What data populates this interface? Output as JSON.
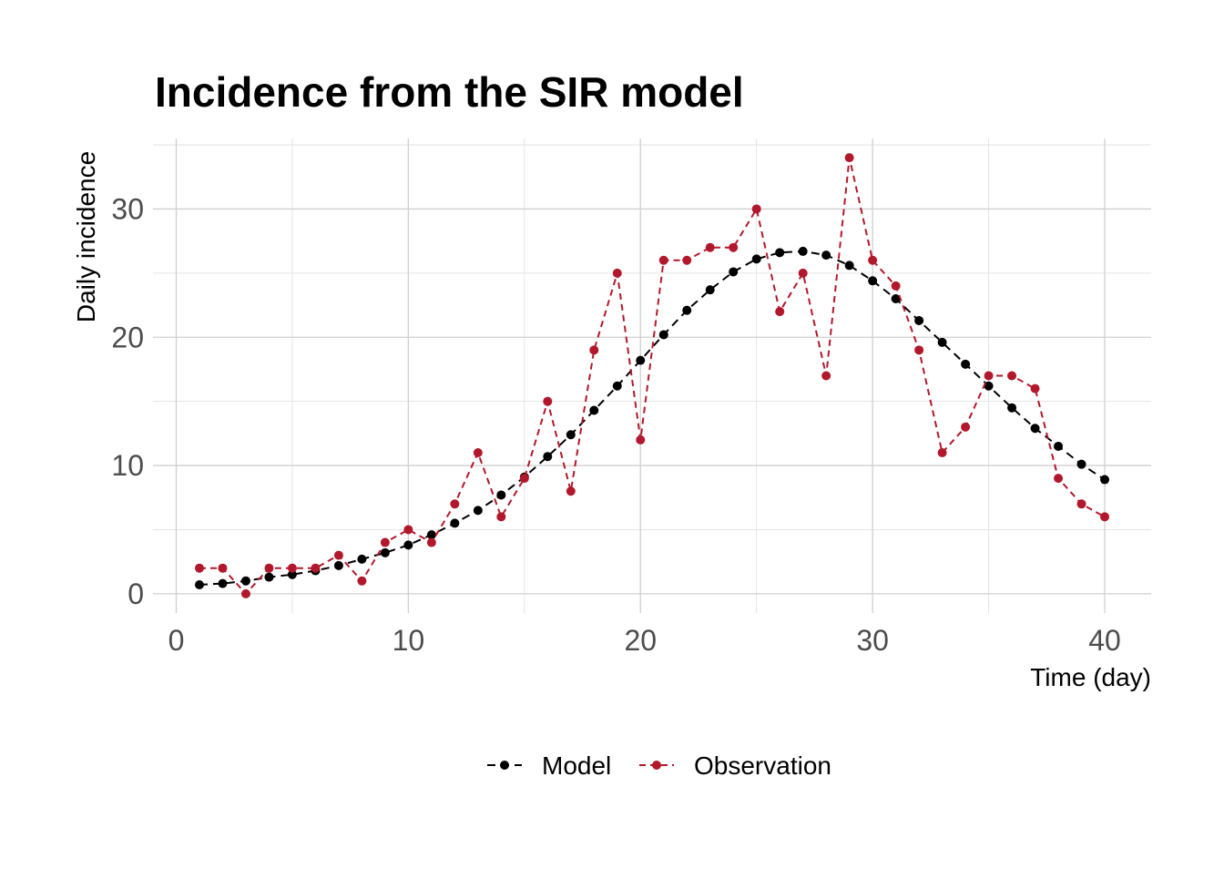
{
  "chart_data": {
    "type": "line",
    "title": "Incidence from the SIR model",
    "xlabel": "Time (day)",
    "ylabel": "Daily incidence",
    "xlim": [
      -1,
      42
    ],
    "ylim": [
      -1.5,
      35.5
    ],
    "x_ticks": [
      0,
      10,
      20,
      30,
      40
    ],
    "y_ticks": [
      0,
      10,
      20,
      30
    ],
    "grid": true,
    "legend_position": "bottom",
    "x": [
      1,
      2,
      3,
      4,
      5,
      6,
      7,
      8,
      9,
      10,
      11,
      12,
      13,
      14,
      15,
      16,
      17,
      18,
      19,
      20,
      21,
      22,
      23,
      24,
      25,
      26,
      27,
      28,
      29,
      30,
      31,
      32,
      33,
      34,
      35,
      36,
      37,
      38,
      39,
      40
    ],
    "series": [
      {
        "name": "Model",
        "color": "#000000",
        "line_style": "dashed",
        "values": [
          0.7,
          0.8,
          1.0,
          1.3,
          1.5,
          1.8,
          2.2,
          2.7,
          3.2,
          3.8,
          4.6,
          5.5,
          6.5,
          7.7,
          9.1,
          10.7,
          12.4,
          14.3,
          16.2,
          18.2,
          20.2,
          22.1,
          23.7,
          25.1,
          26.1,
          26.6,
          26.7,
          26.4,
          25.6,
          24.4,
          23.0,
          21.3,
          19.6,
          17.9,
          16.2,
          14.5,
          12.9,
          11.5,
          10.1,
          8.9
        ]
      },
      {
        "name": "Observation",
        "color": "#b2182b",
        "line_style": "dashed",
        "values": [
          2,
          2,
          0,
          2,
          2,
          2,
          3,
          1,
          4,
          5,
          4,
          7,
          11,
          6,
          9,
          15,
          8,
          19,
          25,
          12,
          26,
          26,
          27,
          27,
          30,
          22,
          25,
          17,
          34,
          26,
          24,
          19,
          11,
          13,
          17,
          17,
          16,
          9,
          7,
          6
        ]
      }
    ]
  }
}
